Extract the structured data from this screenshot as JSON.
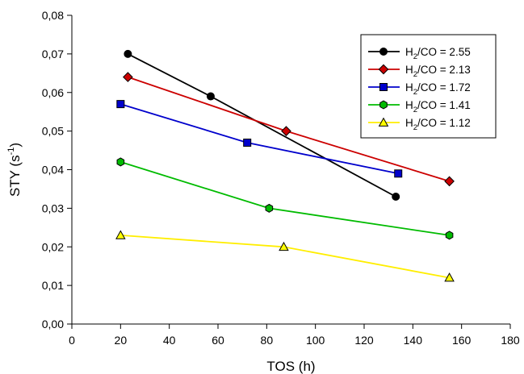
{
  "chart_data": {
    "type": "line",
    "xlabel": "TOS (h)",
    "ylabel": "STY (s",
    "ylabel_sup": "-1",
    "ylabel_close": ")",
    "xlim": [
      0,
      180
    ],
    "ylim": [
      0,
      0.08
    ],
    "x_ticks": [
      "0",
      "20",
      "40",
      "60",
      "80",
      "100",
      "120",
      "140",
      "160",
      "180"
    ],
    "y_ticks": [
      "0,00",
      "0,01",
      "0,02",
      "0,03",
      "0,04",
      "0,05",
      "0,06",
      "0,07",
      "0,08"
    ],
    "grid": false,
    "legend_position": "top-right",
    "series": [
      {
        "name": "H2/CO = 2.55",
        "label_pre": "H",
        "label_sub": "2",
        "label_post": "/CO = 2.55",
        "line_color": "#000000",
        "marker_color": "#000000",
        "marker": "circle",
        "x": [
          23,
          57,
          133
        ],
        "y": [
          0.07,
          0.059,
          0.033
        ]
      },
      {
        "name": "H2/CO = 2.13",
        "label_pre": "H",
        "label_sub": "2",
        "label_post": "/CO = 2.13",
        "line_color": "#cc0000",
        "marker_color": "#cc0000",
        "marker": "diamond",
        "x": [
          23,
          88,
          155
        ],
        "y": [
          0.064,
          0.05,
          0.037
        ]
      },
      {
        "name": "H2/CO = 1.72",
        "label_pre": "H",
        "label_sub": "2",
        "label_post": "/CO = 1.72",
        "line_color": "#0000cc",
        "marker_color": "#0000cc",
        "marker": "square",
        "x": [
          20,
          72,
          134
        ],
        "y": [
          0.057,
          0.047,
          0.039
        ]
      },
      {
        "name": "H2/CO = 1.41",
        "label_pre": "H",
        "label_sub": "2",
        "label_post": "/CO = 1.41",
        "line_color": "#00bb00",
        "marker_color": "#00bb00",
        "marker": "hexagon",
        "x": [
          20,
          81,
          155
        ],
        "y": [
          0.042,
          0.03,
          0.023
        ]
      },
      {
        "name": "H2/CO = 1.12",
        "label_pre": "H",
        "label_sub": "2",
        "label_post": "/CO = 1.12",
        "line_color": "#ffee00",
        "marker_color": "#ffff00",
        "marker": "triangle",
        "x": [
          20,
          87,
          155
        ],
        "y": [
          0.023,
          0.02,
          0.012
        ]
      }
    ]
  }
}
